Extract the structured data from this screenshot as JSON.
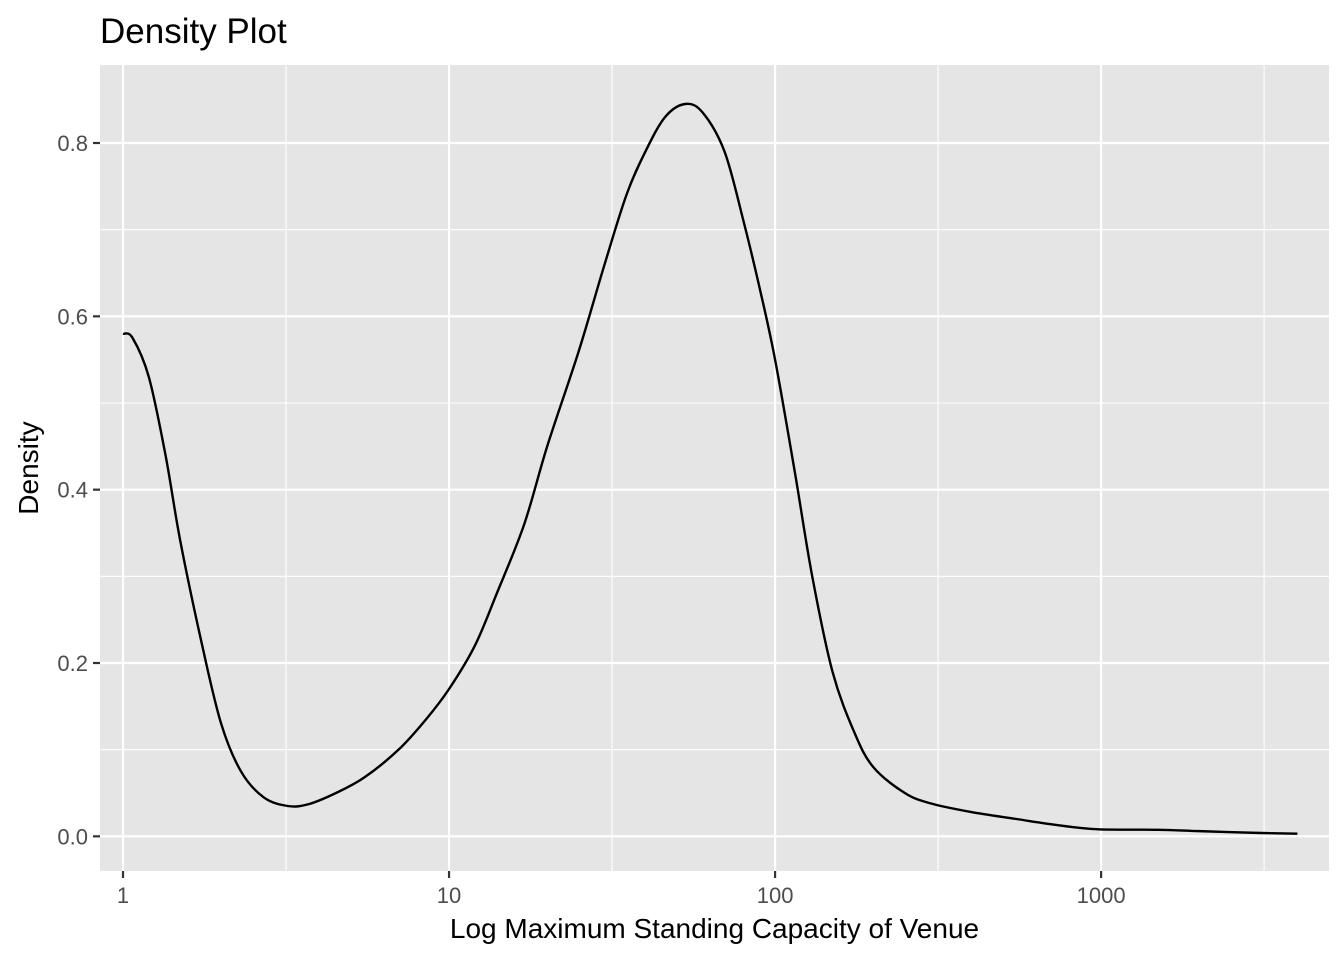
{
  "chart_data": {
    "type": "line",
    "title": "Density Plot",
    "xlabel": "Log Maximum Standing Capacity of Venue",
    "ylabel": "Density",
    "x_scale": "log10",
    "xlim": [
      0.85,
      5000
    ],
    "ylim": [
      -0.04,
      0.89
    ],
    "x_ticks": [
      {
        "value": 1,
        "label": "1"
      },
      {
        "value": 10,
        "label": "10"
      },
      {
        "value": 100,
        "label": "100"
      },
      {
        "value": 1000,
        "label": "1000"
      }
    ],
    "y_ticks": [
      {
        "value": 0.0,
        "label": "0.0"
      },
      {
        "value": 0.2,
        "label": "0.2"
      },
      {
        "value": 0.4,
        "label": "0.4"
      },
      {
        "value": 0.6,
        "label": "0.6"
      },
      {
        "value": 0.8,
        "label": "0.8"
      }
    ],
    "grid": true,
    "series": [
      {
        "color": "#000000",
        "points": [
          [
            1.0,
            0.58
          ],
          [
            1.07,
            0.575
          ],
          [
            1.2,
            0.53
          ],
          [
            1.35,
            0.44
          ],
          [
            1.5,
            0.34
          ],
          [
            1.75,
            0.22
          ],
          [
            2.0,
            0.13
          ],
          [
            2.3,
            0.075
          ],
          [
            2.7,
            0.045
          ],
          [
            3.2,
            0.035
          ],
          [
            3.7,
            0.037
          ],
          [
            4.5,
            0.05
          ],
          [
            5.5,
            0.068
          ],
          [
            7.0,
            0.1
          ],
          [
            8.5,
            0.135
          ],
          [
            10.0,
            0.17
          ],
          [
            12.0,
            0.22
          ],
          [
            14.0,
            0.28
          ],
          [
            17.0,
            0.36
          ],
          [
            20.0,
            0.45
          ],
          [
            25.0,
            0.56
          ],
          [
            30.0,
            0.66
          ],
          [
            35.0,
            0.74
          ],
          [
            40.0,
            0.79
          ],
          [
            46.0,
            0.83
          ],
          [
            53.0,
            0.845
          ],
          [
            60.0,
            0.835
          ],
          [
            70.0,
            0.79
          ],
          [
            80.0,
            0.71
          ],
          [
            90.0,
            0.63
          ],
          [
            100.0,
            0.55
          ],
          [
            115.0,
            0.42
          ],
          [
            130.0,
            0.3
          ],
          [
            150.0,
            0.19
          ],
          [
            175.0,
            0.12
          ],
          [
            200.0,
            0.08
          ],
          [
            250.0,
            0.05
          ],
          [
            300.0,
            0.038
          ],
          [
            400.0,
            0.028
          ],
          [
            550.0,
            0.02
          ],
          [
            700.0,
            0.014
          ],
          [
            850.0,
            0.01
          ],
          [
            1000.0,
            0.008
          ],
          [
            1500.0,
            0.0075
          ],
          [
            2000.0,
            0.006
          ],
          [
            3000.0,
            0.004
          ],
          [
            4000.0,
            0.003
          ]
        ]
      }
    ]
  }
}
